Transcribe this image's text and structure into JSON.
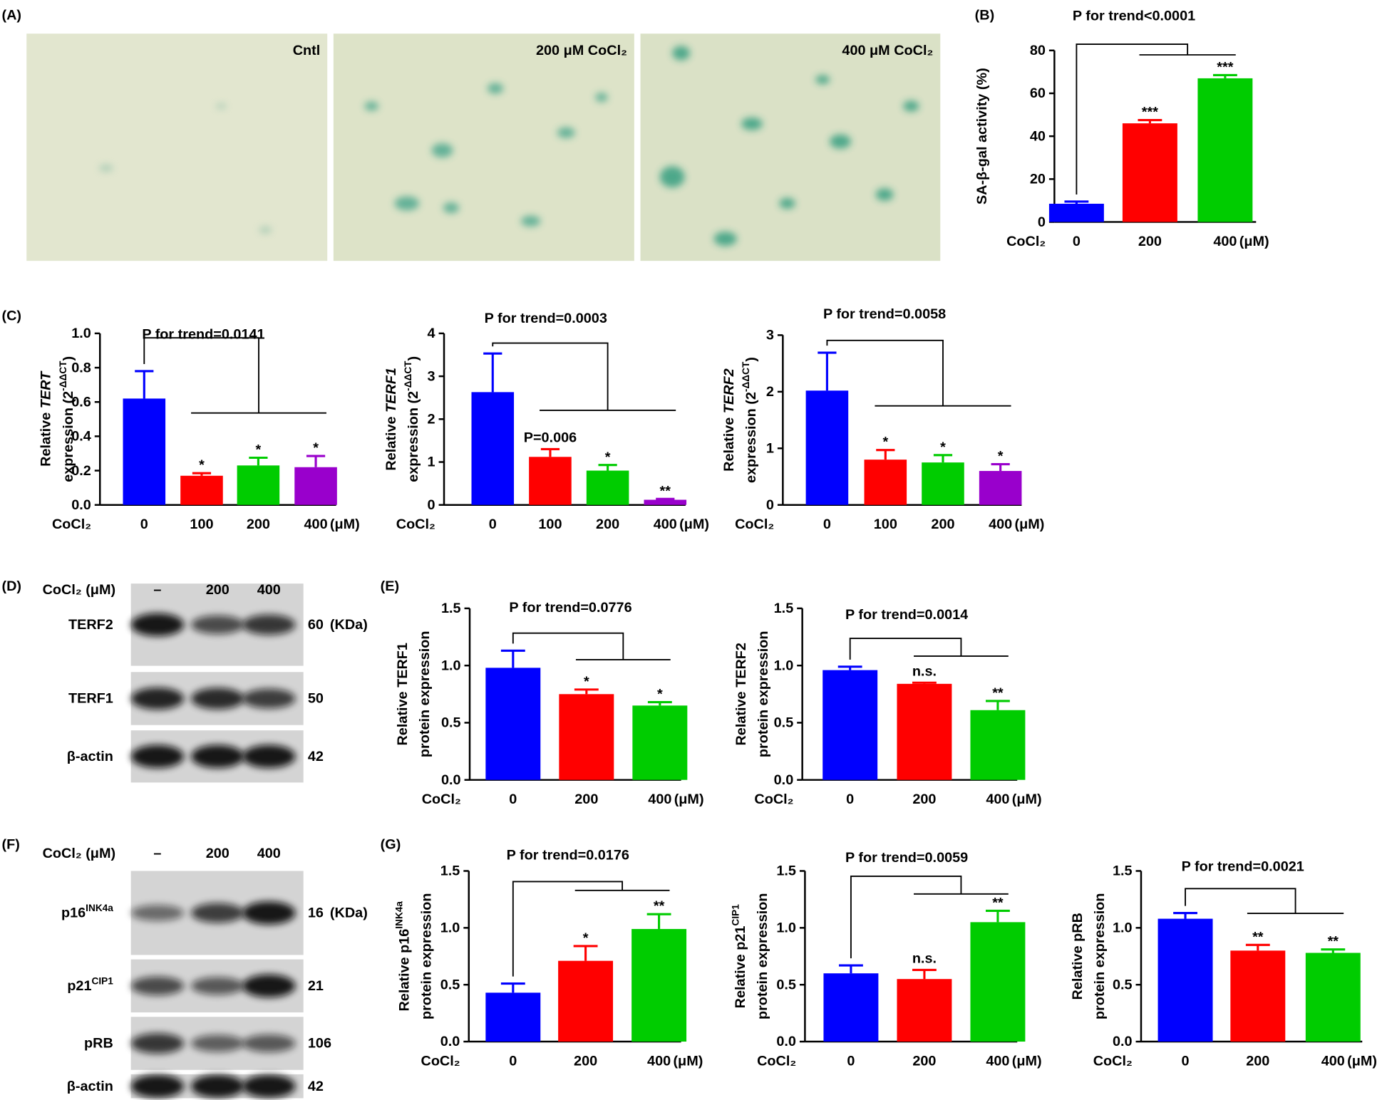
{
  "figure": {
    "panels": [
      "(A)",
      "(B)",
      "(C)",
      "(D)",
      "(E)",
      "(F)",
      "(G)"
    ],
    "micrographs": [
      "Cntl",
      "200 μM CoCl₂",
      "400 μM CoCl₂"
    ],
    "blots": [
      {
        "header": "CoCl₂ (μM)",
        "lanes": [
          "–",
          "200",
          "400"
        ],
        "rows": [
          {
            "name": [
              {
                "text": "TERF2"
              }
            ],
            "size": "60",
            "unit": "(KDa)"
          },
          {
            "name": [
              {
                "text": "TERF1"
              }
            ],
            "size": "50"
          },
          {
            "name": [
              {
                "text": "β-actin"
              }
            ],
            "size": "42"
          }
        ]
      },
      {
        "header": "CoCl₂ (μM)",
        "lanes": [
          "–",
          "200",
          "400"
        ],
        "rows": [
          {
            "name": [
              {
                "text": "p16"
              },
              {
                "text": "INK4a",
                "style": "sup"
              }
            ],
            "size": "16",
            "unit": "(KDa)"
          },
          {
            "name": [
              {
                "text": "p21"
              },
              {
                "text": "CIP1",
                "style": "sup"
              }
            ],
            "size": "21"
          },
          {
            "name": [
              {
                "text": "pRB"
              }
            ],
            "size": "106"
          },
          {
            "name": [
              {
                "text": "β-actin"
              }
            ],
            "size": "42"
          }
        ]
      }
    ]
  },
  "chart_data": [
    {
      "type": "bar",
      "title": "P for trend<0.0001",
      "ylabel": [
        [
          {
            "text": "SA-β-gal activity (%)"
          }
        ]
      ],
      "xprefix": "CoCl₂",
      "xunit": "(μM)",
      "categories": [
        "0",
        "200",
        "400"
      ],
      "values": [
        8.5,
        46,
        67
      ],
      "errors": [
        1,
        1.5,
        1.5
      ],
      "colors": [
        "#0000ff",
        "#ff0000",
        "#00cc00"
      ],
      "sig": [
        {
          "category": 1,
          "label": "***"
        },
        {
          "category": 2,
          "label": "***"
        }
      ],
      "ylim": [
        0,
        80
      ],
      "yticks": [
        0,
        20,
        40,
        60,
        80
      ]
    },
    {
      "type": "bar",
      "title": "P for trend=0.0141",
      "ylabel": [
        [
          {
            "text": "Relative "
          },
          {
            "text": "TERT",
            "style": "italic"
          }
        ],
        [
          {
            "text": "expression (2"
          },
          {
            "text": "-ΔΔCT",
            "style": "sup"
          },
          {
            "text": ")"
          }
        ]
      ],
      "xprefix": "CoCl₂",
      "xunit": "(μM)",
      "categories": [
        "0",
        "100",
        "200",
        "400"
      ],
      "values": [
        0.62,
        0.17,
        0.23,
        0.22
      ],
      "errors": [
        0.16,
        0.015,
        0.045,
        0.065
      ],
      "colors": [
        "#0000ff",
        "#ff0000",
        "#00cc00",
        "#9900cc"
      ],
      "sig": [
        {
          "category": 1,
          "label": "*"
        },
        {
          "category": 2,
          "label": "*"
        },
        {
          "category": 3,
          "label": "*"
        }
      ],
      "ylim": [
        0,
        1
      ],
      "yticks": [
        {
          "value": 0,
          "label": "0.0"
        },
        0.2,
        0.4,
        0.6,
        0.8,
        {
          "value": 1,
          "label": "1.0"
        }
      ]
    },
    {
      "type": "bar",
      "title": "P for trend=0.0003",
      "ylabel": [
        [
          {
            "text": "Relative "
          },
          {
            "text": "TERF1",
            "style": "italic"
          }
        ],
        [
          {
            "text": "expression (2"
          },
          {
            "text": "-ΔΔCT",
            "style": "sup"
          },
          {
            "text": ")"
          }
        ]
      ],
      "xprefix": "CoCl₂",
      "xunit": "(μM)",
      "categories": [
        "0",
        "100",
        "200",
        "400"
      ],
      "values": [
        2.63,
        1.12,
        0.8,
        0.12
      ],
      "errors": [
        0.9,
        0.18,
        0.13,
        0.02
      ],
      "colors": [
        "#0000ff",
        "#ff0000",
        "#00cc00",
        "#9900cc"
      ],
      "sig": [
        {
          "category": 1,
          "label": "P=0.006"
        },
        {
          "category": 2,
          "label": "*"
        },
        {
          "category": 3,
          "label": "**"
        }
      ],
      "ylim": [
        0,
        4
      ],
      "yticks": [
        0,
        1,
        2,
        3,
        4
      ]
    },
    {
      "type": "bar",
      "title": "P for trend=0.0058",
      "ylabel": [
        [
          {
            "text": "Relative "
          },
          {
            "text": "TERF2",
            "style": "italic"
          }
        ],
        [
          {
            "text": "expression (2"
          },
          {
            "text": "-ΔΔCT",
            "style": "sup"
          },
          {
            "text": ")"
          }
        ]
      ],
      "xprefix": "CoCl₂",
      "xunit": "(μM)",
      "categories": [
        "0",
        "100",
        "200",
        "400"
      ],
      "values": [
        2.02,
        0.8,
        0.75,
        0.6
      ],
      "errors": [
        0.67,
        0.17,
        0.13,
        0.12
      ],
      "colors": [
        "#0000ff",
        "#ff0000",
        "#00cc00",
        "#9900cc"
      ],
      "sig": [
        {
          "category": 1,
          "label": "*"
        },
        {
          "category": 2,
          "label": "*"
        },
        {
          "category": 3,
          "label": "*"
        }
      ],
      "ylim": [
        0,
        3
      ],
      "yticks": [
        0,
        1,
        2,
        3
      ]
    },
    {
      "type": "bar",
      "title": "P for trend=0.0776",
      "ylabel": [
        [
          {
            "text": "Relative TERF1"
          }
        ],
        [
          {
            "text": "protein expression"
          }
        ]
      ],
      "xprefix": "CoCl₂",
      "xunit": "(μM)",
      "categories": [
        "0",
        "200",
        "400"
      ],
      "values": [
        0.98,
        0.75,
        0.65
      ],
      "errors": [
        0.15,
        0.04,
        0.03
      ],
      "colors": [
        "#0000ff",
        "#ff0000",
        "#00cc00"
      ],
      "sig": [
        {
          "category": 1,
          "label": "*"
        },
        {
          "category": 2,
          "label": "*"
        }
      ],
      "ylim": [
        0,
        1.5
      ],
      "yticks": [
        {
          "value": 0,
          "label": "0.0"
        },
        0.5,
        {
          "value": 1,
          "label": "1.0"
        },
        1.5
      ]
    },
    {
      "type": "bar",
      "title": "P for trend=0.0014",
      "ylabel": [
        [
          {
            "text": "Relative TERF2"
          }
        ],
        [
          {
            "text": "protein expression"
          }
        ]
      ],
      "xprefix": "CoCl₂",
      "xunit": "(μM)",
      "categories": [
        "0",
        "200",
        "400"
      ],
      "values": [
        0.96,
        0.84,
        0.61
      ],
      "errors": [
        0.03,
        0.01,
        0.08
      ],
      "colors": [
        "#0000ff",
        "#ff0000",
        "#00cc00"
      ],
      "sig": [
        {
          "category": 1,
          "label": "n.s."
        },
        {
          "category": 2,
          "label": "**"
        }
      ],
      "ylim": [
        0,
        1.5
      ],
      "yticks": [
        {
          "value": 0,
          "label": "0.0"
        },
        0.5,
        {
          "value": 1,
          "label": "1.0"
        },
        1.5
      ]
    },
    {
      "type": "bar",
      "title": "P for trend=0.0176",
      "ylabel": [
        [
          {
            "text": "Relative p16"
          },
          {
            "text": "INK4a",
            "style": "sup"
          }
        ],
        [
          {
            "text": "protein expression"
          }
        ]
      ],
      "xprefix": "CoCl₂",
      "xunit": "(μM)",
      "categories": [
        "0",
        "200",
        "400"
      ],
      "values": [
        0.43,
        0.71,
        0.99
      ],
      "errors": [
        0.08,
        0.13,
        0.13
      ],
      "colors": [
        "#0000ff",
        "#ff0000",
        "#00cc00"
      ],
      "sig": [
        {
          "category": 1,
          "label": "*"
        },
        {
          "category": 2,
          "label": "**"
        }
      ],
      "ylim": [
        0,
        1.5
      ],
      "yticks": [
        {
          "value": 0,
          "label": "0.0"
        },
        0.5,
        {
          "value": 1,
          "label": "1.0"
        },
        1.5
      ]
    },
    {
      "type": "bar",
      "title": "P for trend=0.0059",
      "ylabel": [
        [
          {
            "text": "Relative p21"
          },
          {
            "text": "CIP1",
            "style": "sup"
          }
        ],
        [
          {
            "text": "protein expression"
          }
        ]
      ],
      "xprefix": "CoCl₂",
      "xunit": "(μM)",
      "categories": [
        "0",
        "200",
        "400"
      ],
      "values": [
        0.6,
        0.55,
        1.05
      ],
      "errors": [
        0.07,
        0.08,
        0.1
      ],
      "colors": [
        "#0000ff",
        "#ff0000",
        "#00cc00"
      ],
      "sig": [
        {
          "category": 1,
          "label": "n.s."
        },
        {
          "category": 2,
          "label": "**"
        }
      ],
      "ylim": [
        0,
        1.5
      ],
      "yticks": [
        {
          "value": 0,
          "label": "0.0"
        },
        0.5,
        {
          "value": 1,
          "label": "1.0"
        },
        1.5
      ]
    },
    {
      "type": "bar",
      "title": "P for trend=0.0021",
      "ylabel": [
        [
          {
            "text": "Relative pRB"
          }
        ],
        [
          {
            "text": "protein expression"
          }
        ]
      ],
      "xprefix": "CoCl₂",
      "xunit": "(μM)",
      "categories": [
        "0",
        "200",
        "400"
      ],
      "values": [
        1.08,
        0.8,
        0.78
      ],
      "errors": [
        0.05,
        0.05,
        0.03
      ],
      "colors": [
        "#0000ff",
        "#ff0000",
        "#00cc00"
      ],
      "sig": [
        {
          "category": 1,
          "label": "**"
        },
        {
          "category": 2,
          "label": "**"
        }
      ],
      "ylim": [
        0,
        1.5
      ],
      "yticks": [
        {
          "value": 0,
          "label": "0.0"
        },
        0.5,
        {
          "value": 1,
          "label": "1.0"
        },
        1.5
      ]
    }
  ]
}
